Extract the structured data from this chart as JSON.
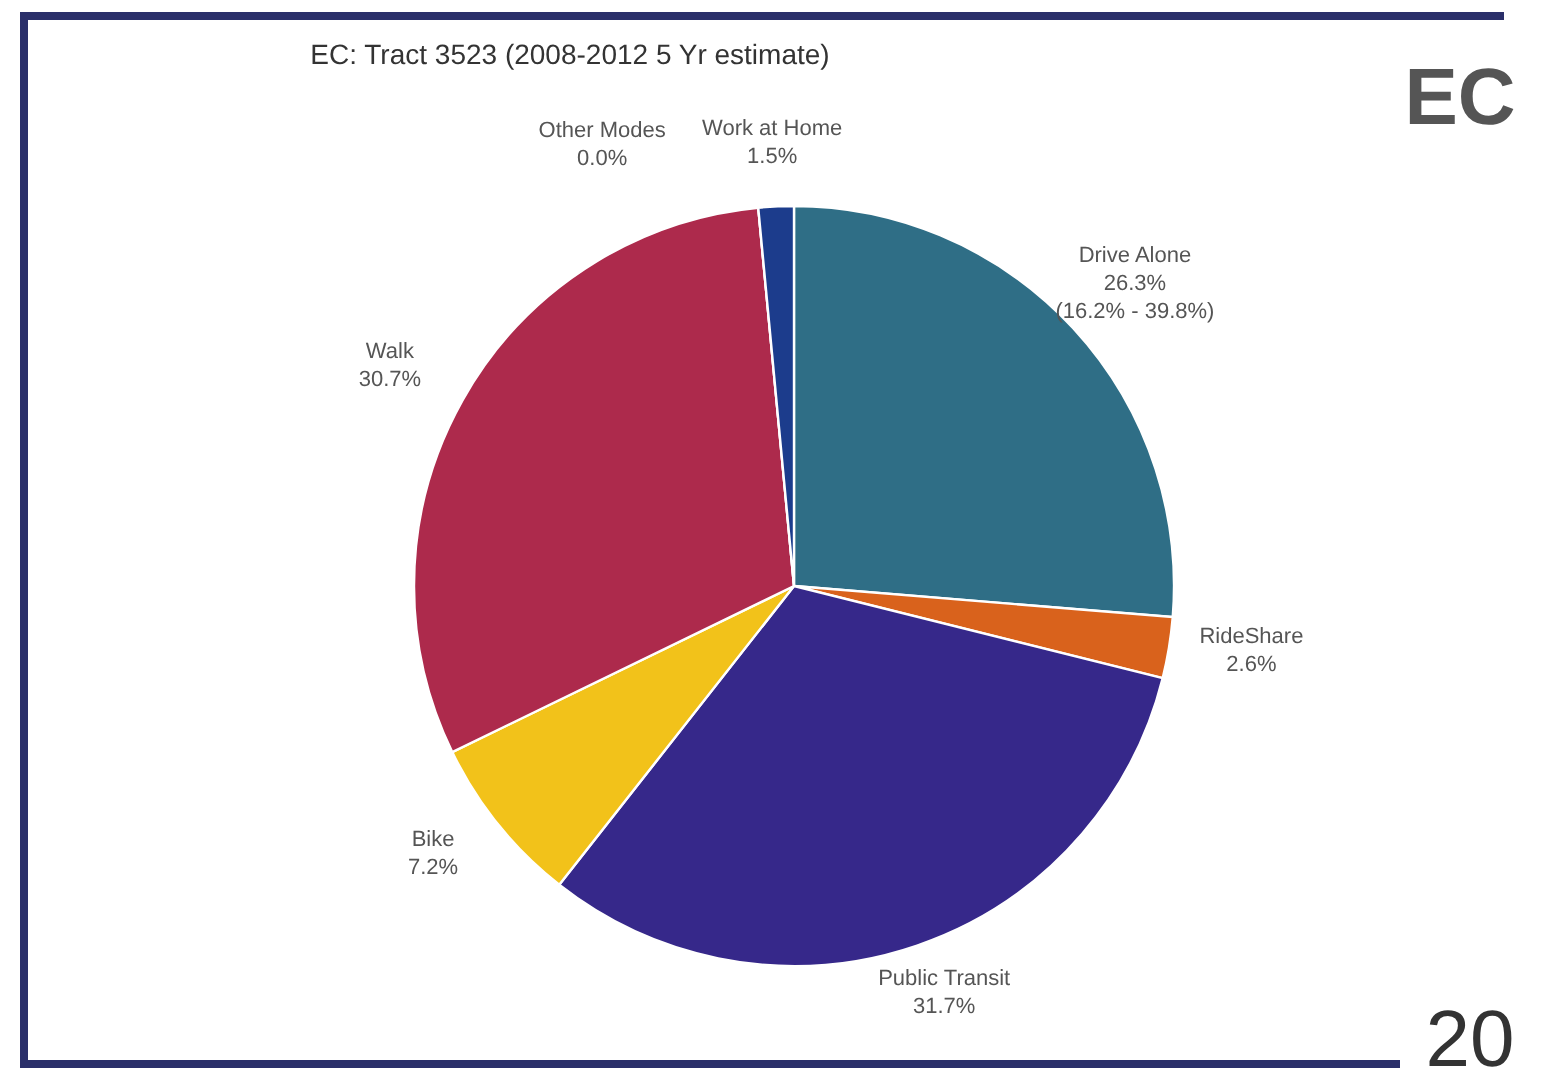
{
  "chart_data": {
    "type": "pie",
    "title": "EC: Tract 3523 (2008-2012 5 Yr estimate)",
    "categories": [
      "Drive Alone",
      "RideShare",
      "Public Transit",
      "Bike",
      "Walk",
      "Other Modes",
      "Work at Home"
    ],
    "values": [
      26.3,
      2.6,
      31.7,
      7.2,
      30.7,
      0.0,
      1.5
    ],
    "colors": [
      "#2f6e86",
      "#d9621c",
      "#36288a",
      "#f2c21a",
      "#ad2a4c",
      "#6a7a3a",
      "#1c3c8c"
    ],
    "value_labels": [
      "26.3%",
      "2.6%",
      "31.7%",
      "7.2%",
      "30.7%",
      "0.0%",
      "1.5%"
    ],
    "annotations": [
      {
        "text": "(16.2% - 39.8%)",
        "x": "Drive Alone"
      },
      "EC",
      "20"
    ]
  }
}
